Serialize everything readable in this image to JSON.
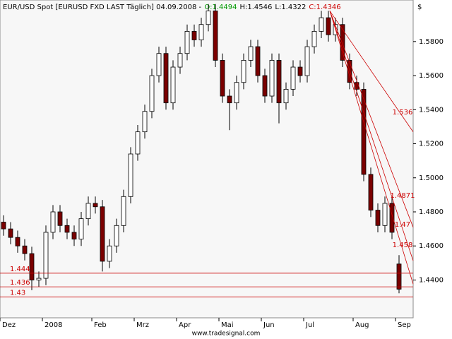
{
  "chart_data": {
    "type": "candlestick",
    "title": "EUR/USD Spot [EURUSD FXD LAST Täglich] 04.09.2008 -",
    "ohlc_labels": [
      {
        "text": "O:1.4494",
        "color": "#009900"
      },
      {
        "text": "H:1.4546",
        "color": "#000000"
      },
      {
        "text": "L:1.4322",
        "color": "#000000"
      },
      {
        "text": "C:1.4346",
        "color": "#cc0000"
      }
    ],
    "currency": "$",
    "footer": "www.tradesignal.com",
    "categories": [
      "Dez",
      null,
      null,
      null,
      null,
      null,
      "2008",
      null,
      null,
      null,
      null,
      null,
      null,
      "Feb",
      null,
      null,
      null,
      null,
      null,
      "Mrz",
      null,
      null,
      null,
      null,
      null,
      "Apr",
      null,
      null,
      null,
      null,
      null,
      "Mai",
      null,
      null,
      null,
      null,
      null,
      "Jun",
      null,
      null,
      null,
      null,
      null,
      "Jul",
      null,
      null,
      null,
      null,
      null,
      null,
      "Aug",
      null,
      null,
      null,
      null,
      null,
      "Sep"
    ],
    "open": [
      1.474,
      1.47,
      1.465,
      1.46,
      1.4555,
      1.44,
      1.441,
      1.468,
      1.48,
      1.472,
      1.468,
      1.464,
      1.476,
      1.485,
      1.483,
      1.451,
      1.46,
      1.472,
      1.489,
      1.514,
      1.527,
      1.539,
      1.56,
      1.573,
      1.544,
      1.565,
      1.573,
      1.586,
      1.581,
      1.59,
      1.598,
      1.569,
      1.548,
      1.544,
      1.556,
      1.569,
      1.577,
      1.56,
      1.548,
      1.569,
      1.544,
      1.552,
      1.565,
      1.56,
      1.577,
      1.586,
      1.594,
      1.584,
      1.59,
      1.569,
      1.556,
      1.552,
      1.502,
      1.481,
      1.472,
      1.485,
      1.4494
    ],
    "high": [
      1.478,
      1.474,
      1.469,
      1.464,
      1.4595,
      1.445,
      1.472,
      1.484,
      1.484,
      1.476,
      1.472,
      1.48,
      1.489,
      1.489,
      1.487,
      1.464,
      1.476,
      1.493,
      1.518,
      1.531,
      1.543,
      1.564,
      1.577,
      1.577,
      1.569,
      1.577,
      1.59,
      1.59,
      1.594,
      1.602,
      1.602,
      1.573,
      1.552,
      1.56,
      1.573,
      1.581,
      1.581,
      1.564,
      1.573,
      1.573,
      1.556,
      1.569,
      1.569,
      1.581,
      1.59,
      1.598,
      1.598,
      1.594,
      1.594,
      1.573,
      1.56,
      1.556,
      1.506,
      1.485,
      1.489,
      1.489,
      1.4546
    ],
    "low": [
      1.466,
      1.461,
      1.456,
      1.4515,
      1.434,
      1.436,
      1.437,
      1.464,
      1.468,
      1.464,
      1.46,
      1.46,
      1.472,
      1.479,
      1.445,
      1.447,
      1.456,
      1.468,
      1.485,
      1.51,
      1.523,
      1.535,
      1.556,
      1.54,
      1.54,
      1.561,
      1.569,
      1.577,
      1.577,
      1.586,
      1.565,
      1.544,
      1.528,
      1.54,
      1.552,
      1.565,
      1.556,
      1.544,
      1.544,
      1.532,
      1.54,
      1.548,
      1.556,
      1.556,
      1.573,
      1.582,
      1.58,
      1.58,
      1.565,
      1.552,
      1.548,
      1.498,
      1.477,
      1.468,
      1.468,
      1.464,
      1.4322
    ],
    "close": [
      1.47,
      1.465,
      1.46,
      1.4555,
      1.44,
      1.441,
      1.468,
      1.48,
      1.472,
      1.468,
      1.464,
      1.476,
      1.485,
      1.483,
      1.451,
      1.46,
      1.472,
      1.489,
      1.514,
      1.527,
      1.539,
      1.56,
      1.573,
      1.544,
      1.565,
      1.573,
      1.586,
      1.581,
      1.59,
      1.598,
      1.569,
      1.548,
      1.544,
      1.556,
      1.569,
      1.577,
      1.56,
      1.548,
      1.569,
      1.544,
      1.552,
      1.565,
      1.56,
      1.577,
      1.586,
      1.594,
      1.584,
      1.59,
      1.569,
      1.556,
      1.552,
      1.502,
      1.481,
      1.472,
      1.485,
      1.468,
      1.4346
    ],
    "up_color": "#ffffff",
    "down_color": "#7a0000",
    "ylim": [
      1.4178,
      1.6044
    ],
    "yticks": [
      {
        "value": 1.44,
        "label": "1.4400"
      },
      {
        "value": 1.46,
        "label": "1.4600"
      },
      {
        "value": 1.48,
        "label": "1.4800"
      },
      {
        "value": 1.5,
        "label": "1.5000"
      },
      {
        "value": 1.52,
        "label": "1.5200"
      },
      {
        "value": 1.54,
        "label": "1.5400"
      },
      {
        "value": 1.56,
        "label": "1.5600"
      },
      {
        "value": 1.58,
        "label": "1.5800"
      }
    ],
    "levels": [
      1.444,
      1.436,
      1.43
    ],
    "trendlines": [
      1.536,
      1.4871,
      1.47,
      1.458
    ],
    "line_color": "#cc0000"
  }
}
